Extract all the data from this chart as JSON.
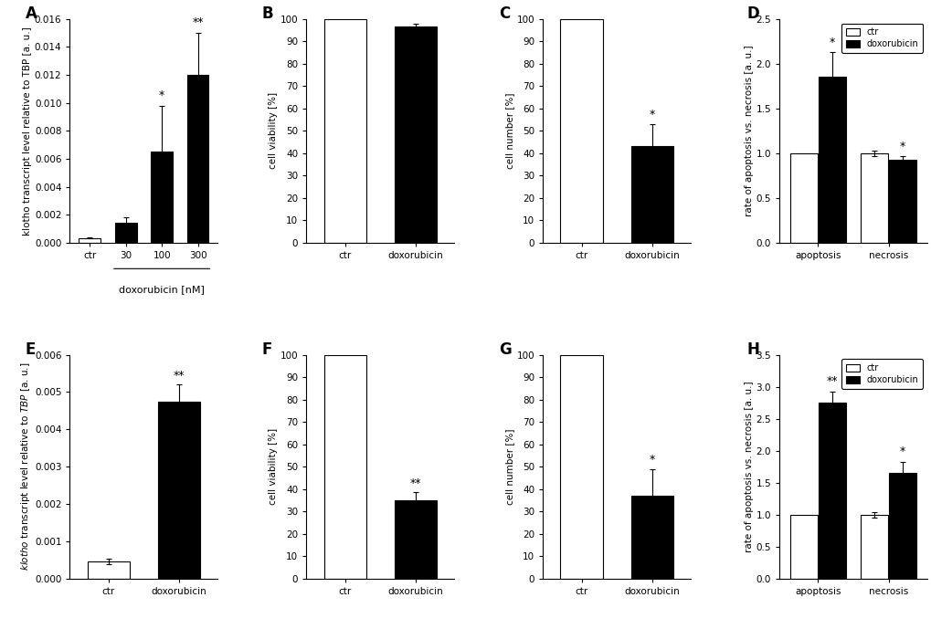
{
  "A": {
    "label": "A",
    "categories": [
      "ctr",
      "30",
      "100",
      "300"
    ],
    "values": [
      0.00035,
      0.0014,
      0.0065,
      0.012
    ],
    "errors": [
      4e-05,
      0.00045,
      0.0033,
      0.003
    ],
    "colors": [
      "white",
      "black",
      "black",
      "black"
    ],
    "ylabel": "klotho transcript level relative to TBP [a. u.]",
    "xlabel": "doxorubicin [nM]",
    "ylim": [
      0,
      0.016
    ],
    "yticks": [
      0.0,
      0.002,
      0.004,
      0.006,
      0.008,
      0.01,
      0.012,
      0.014,
      0.016
    ],
    "significance": [
      "",
      "",
      "*",
      "**"
    ]
  },
  "B": {
    "label": "B",
    "categories": [
      "ctr",
      "doxorubicin"
    ],
    "values": [
      100,
      96.5
    ],
    "errors": [
      0,
      1.5
    ],
    "colors": [
      "white",
      "black"
    ],
    "ylabel": "cell viability [%]",
    "ylim": [
      0,
      100
    ],
    "yticks": [
      0,
      10,
      20,
      30,
      40,
      50,
      60,
      70,
      80,
      90,
      100
    ],
    "significance": [
      "",
      ""
    ]
  },
  "C": {
    "label": "C",
    "categories": [
      "ctr",
      "doxorubicin"
    ],
    "values": [
      100,
      43
    ],
    "errors": [
      0,
      10
    ],
    "colors": [
      "white",
      "black"
    ],
    "ylabel": "cell number [%]",
    "ylim": [
      0,
      100
    ],
    "yticks": [
      0,
      10,
      20,
      30,
      40,
      50,
      60,
      70,
      80,
      90,
      100
    ],
    "significance": [
      "",
      "*"
    ]
  },
  "D": {
    "label": "D",
    "groups": [
      "apoptosis",
      "necrosis"
    ],
    "ctr_values": [
      1.0,
      1.0
    ],
    "dox_values": [
      1.85,
      0.93
    ],
    "ctr_errors": [
      0.0,
      0.03
    ],
    "dox_errors": [
      0.28,
      0.04
    ],
    "ylabel": "rate of apoptosis vs. necrosis [a. u.]",
    "ylim": [
      0,
      2.5
    ],
    "yticks": [
      0.0,
      0.5,
      1.0,
      1.5,
      2.0,
      2.5
    ],
    "significance_dox": [
      "*",
      "*"
    ]
  },
  "E": {
    "label": "E",
    "categories": [
      "ctr",
      "doxorubicin"
    ],
    "values": [
      0.00046,
      0.00475
    ],
    "errors": [
      8e-05,
      0.00045
    ],
    "colors": [
      "white",
      "black"
    ],
    "ylabel": "klotho transcript level relative to TBP [a. u.]",
    "ylim": [
      0,
      0.006
    ],
    "yticks": [
      0.0,
      0.001,
      0.002,
      0.003,
      0.004,
      0.005,
      0.006
    ],
    "significance": [
      "",
      "**"
    ]
  },
  "F": {
    "label": "F",
    "categories": [
      "ctr",
      "doxorubicin"
    ],
    "values": [
      100,
      35
    ],
    "errors": [
      0,
      3.5
    ],
    "colors": [
      "white",
      "black"
    ],
    "ylabel": "cell viability [%]",
    "ylim": [
      0,
      100
    ],
    "yticks": [
      0,
      10,
      20,
      30,
      40,
      50,
      60,
      70,
      80,
      90,
      100
    ],
    "significance": [
      "",
      "**"
    ]
  },
  "G": {
    "label": "G",
    "categories": [
      "ctr",
      "doxorubicin"
    ],
    "values": [
      100,
      37
    ],
    "errors": [
      0,
      12
    ],
    "colors": [
      "white",
      "black"
    ],
    "ylabel": "cell number [%]",
    "ylim": [
      0,
      100
    ],
    "yticks": [
      0,
      10,
      20,
      30,
      40,
      50,
      60,
      70,
      80,
      90,
      100
    ],
    "significance": [
      "",
      "*"
    ]
  },
  "H": {
    "label": "H",
    "groups": [
      "apoptosis",
      "necrosis"
    ],
    "ctr_values": [
      1.0,
      1.0
    ],
    "dox_values": [
      2.75,
      1.65
    ],
    "ctr_errors": [
      0.0,
      0.04
    ],
    "dox_errors": [
      0.18,
      0.18
    ],
    "ylabel": "rate of apoptosis vs. necrosis [a. u.]",
    "ylim": [
      0,
      3.5
    ],
    "yticks": [
      0.0,
      0.5,
      1.0,
      1.5,
      2.0,
      2.5,
      3.0,
      3.5
    ],
    "significance_dox": [
      "**",
      "*"
    ]
  },
  "font_size": 8,
  "label_font_size": 12,
  "tick_font_size": 7.5,
  "bar_width": 0.6
}
